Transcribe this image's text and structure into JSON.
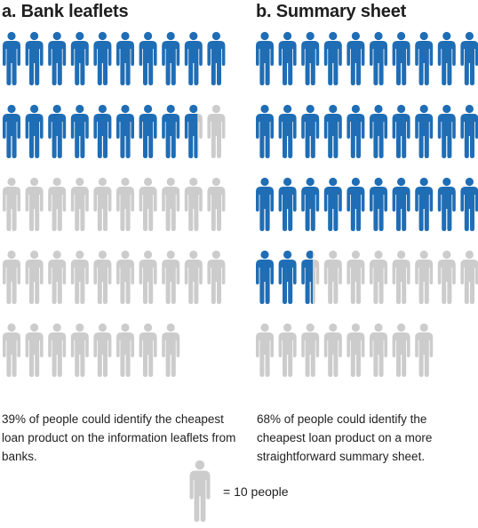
{
  "chart_data": [
    {
      "type": "pictogram",
      "panel_title": "a. Bank leaflets",
      "value_percent": 39,
      "total_icons": 48,
      "icon_rows": [
        10,
        10,
        10,
        10,
        8
      ],
      "caption": "39% of people could identify the cheapest loan product on the information leaflets from banks."
    },
    {
      "type": "pictogram",
      "panel_title": "b. Summary sheet",
      "value_percent": 68,
      "total_icons": 48,
      "icon_rows": [
        10,
        10,
        10,
        10,
        8
      ],
      "caption": "68% of people could identify the cheapest loan product on a more straightforward summary sheet."
    }
  ],
  "legend": {
    "label": "= 10 people",
    "icon": "person-icon"
  },
  "colors": {
    "filled": "#1f6db5",
    "empty": "#cccccc",
    "text": "#1f1f1f"
  }
}
